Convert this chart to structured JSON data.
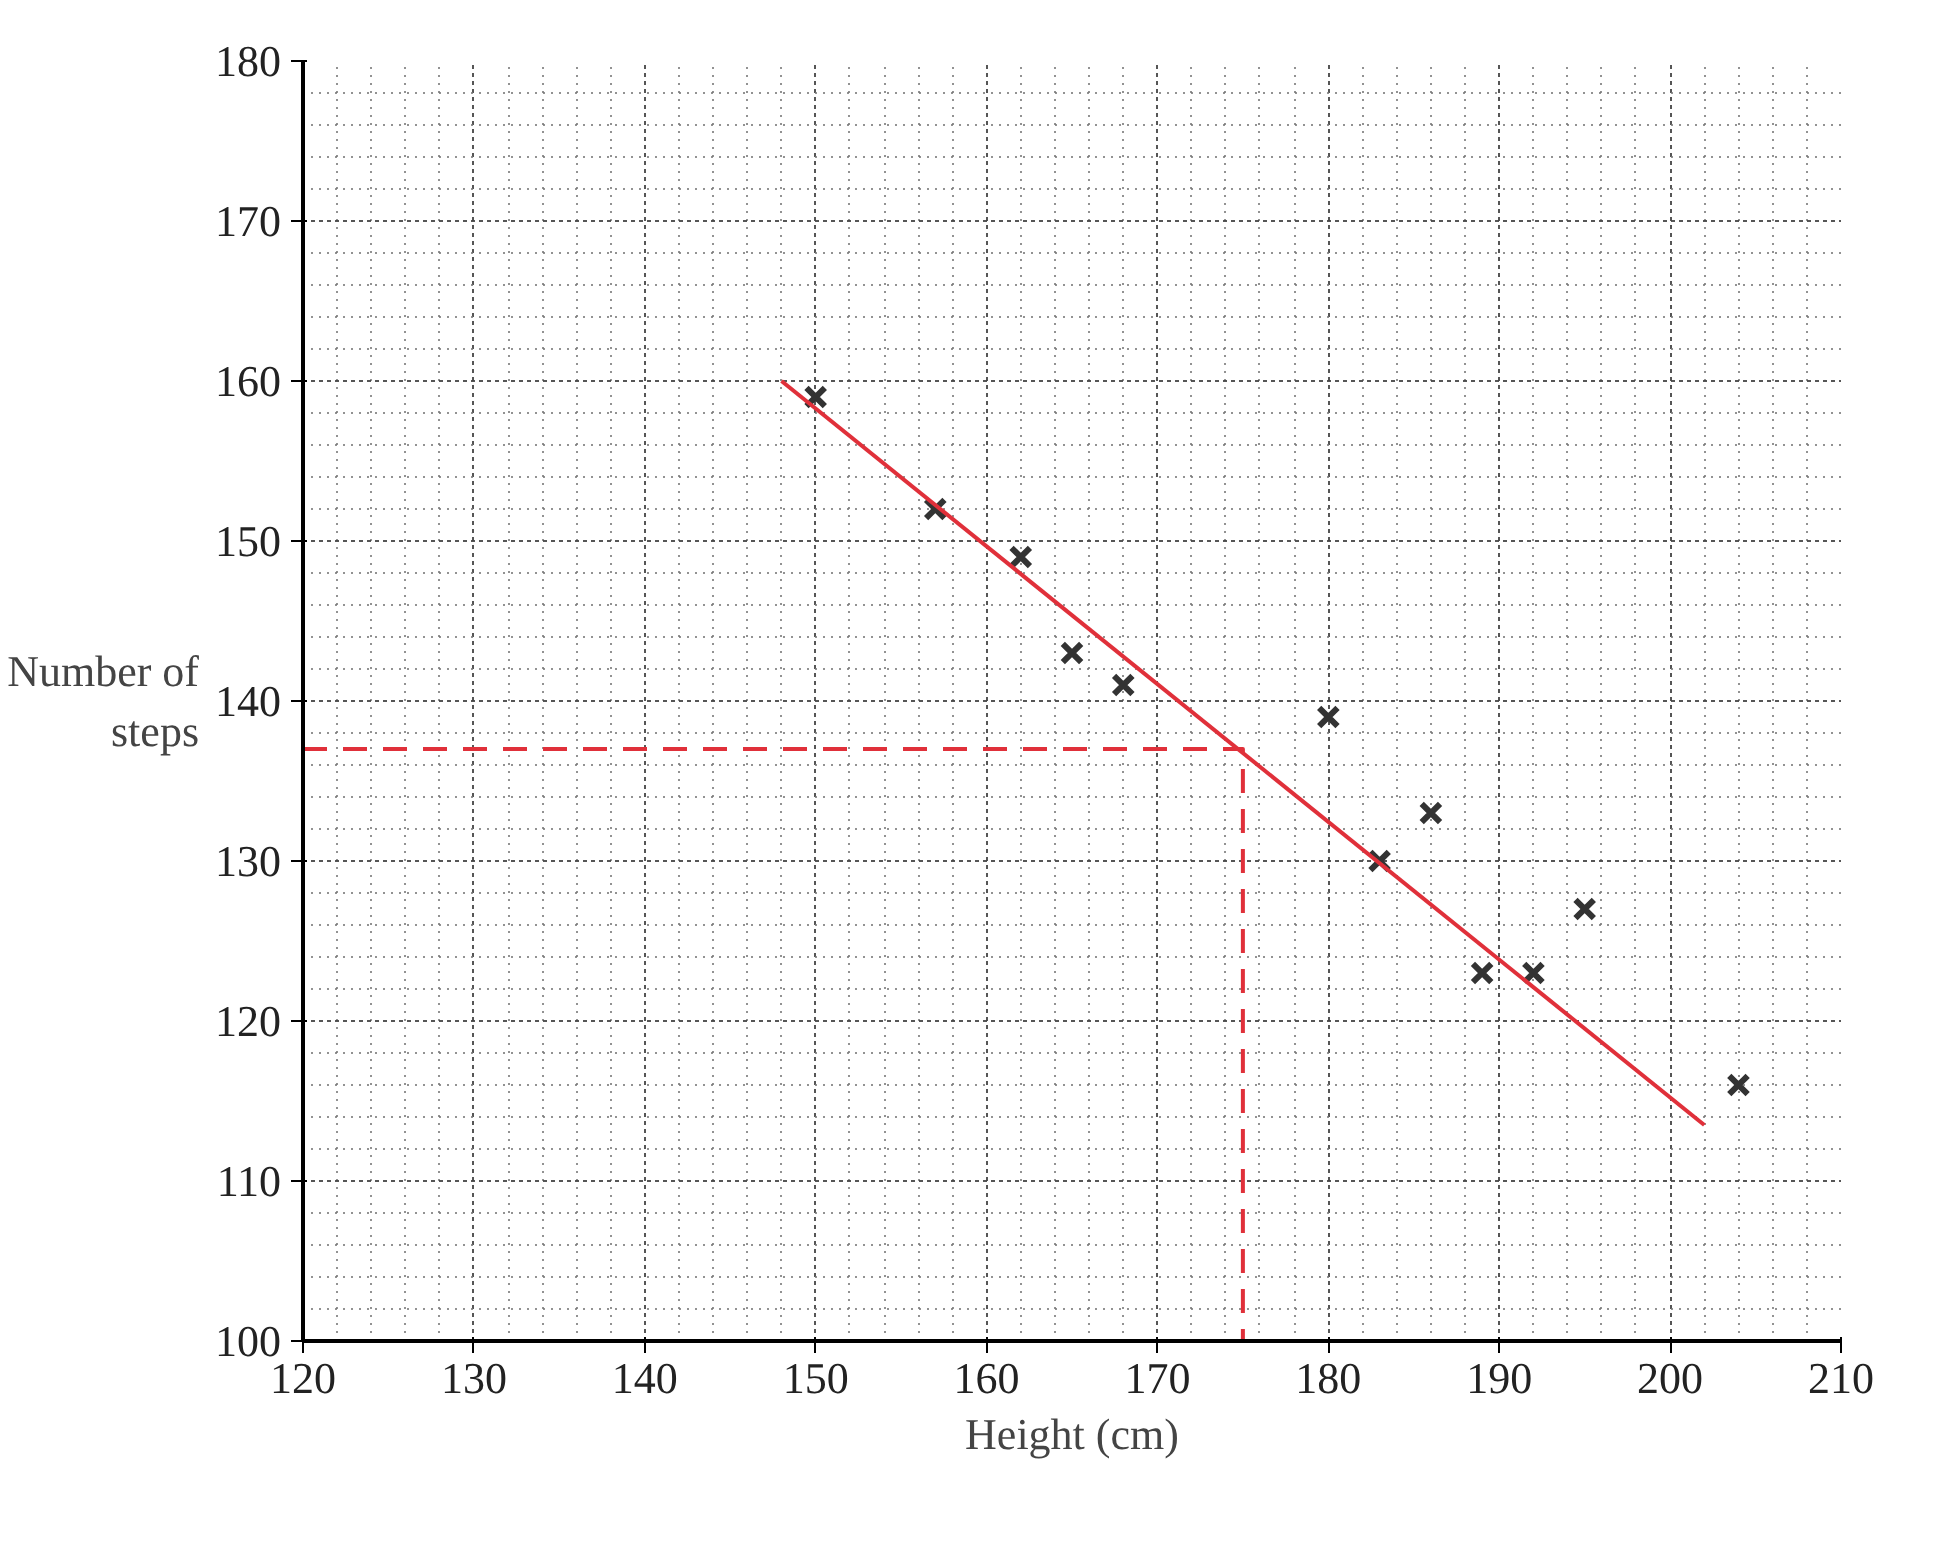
{
  "chart_data": {
    "type": "scatter",
    "xlabel": "Height (cm)",
    "ylabel": "Number of steps",
    "xlim": [
      120,
      210
    ],
    "ylim": [
      100,
      180
    ],
    "xticks": [
      120,
      130,
      140,
      150,
      160,
      170,
      180,
      190,
      200,
      210
    ],
    "yticks": [
      100,
      110,
      120,
      130,
      140,
      150,
      160,
      170,
      180
    ],
    "grid": true,
    "series": [
      {
        "marker": "cross",
        "color": "#333333",
        "x": [
          150,
          157,
          162,
          165,
          168,
          180,
          183,
          186,
          189,
          192,
          195,
          204
        ],
        "values": [
          159,
          152,
          149,
          143,
          141,
          139,
          130,
          133,
          123,
          123,
          127,
          116
        ]
      },
      {
        "type": "line",
        "color": "#e0303a",
        "line_style": "solid",
        "x": [
          148,
          202
        ],
        "values": [
          160,
          113.5
        ]
      },
      {
        "type": "line",
        "color": "#e0303a",
        "line_style": "dashed",
        "x": [
          120,
          175,
          175
        ],
        "values": [
          137,
          137,
          100
        ]
      }
    ]
  }
}
